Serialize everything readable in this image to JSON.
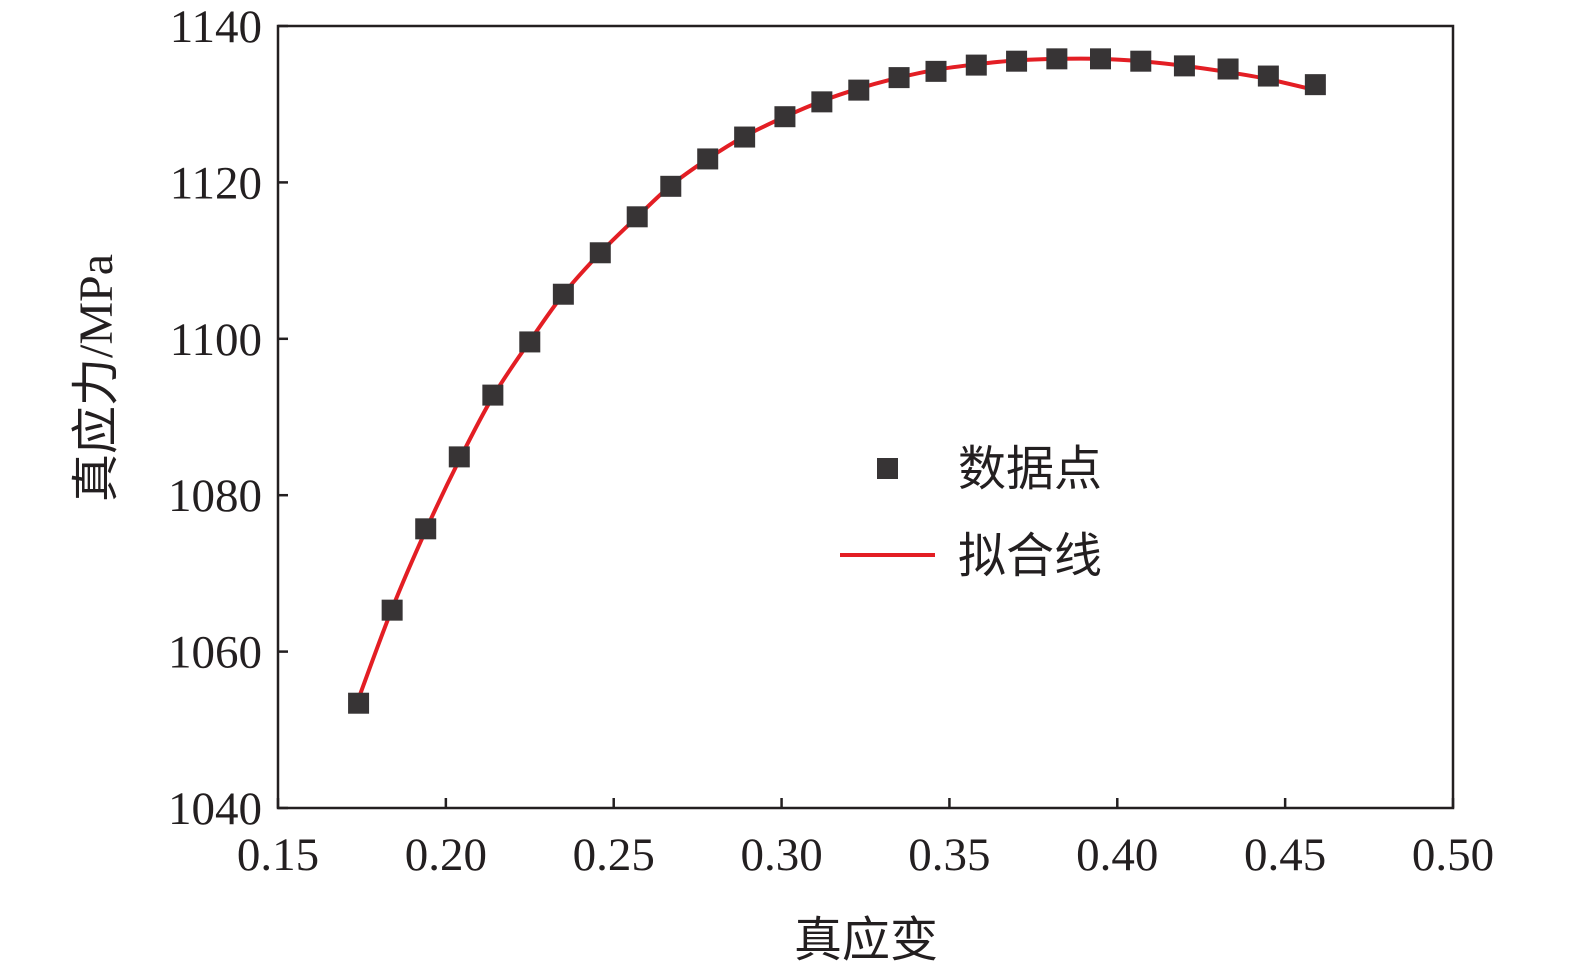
{
  "chart_data": {
    "type": "scatter",
    "title": "",
    "xlabel": "真应变",
    "ylabel": "真应力/MPa",
    "xlim": [
      0.15,
      0.5
    ],
    "ylim": [
      1040,
      1140
    ],
    "xticks": [
      "0.15",
      "0.20",
      "0.25",
      "0.30",
      "0.35",
      "0.40",
      "0.45",
      "0.50"
    ],
    "yticks": [
      "1040",
      "1060",
      "1080",
      "1100",
      "1120",
      "1140"
    ],
    "xtick_values": [
      0.15,
      0.2,
      0.25,
      0.3,
      0.35,
      0.4,
      0.45,
      0.5
    ],
    "ytick_values": [
      1040,
      1060,
      1080,
      1100,
      1120,
      1140
    ],
    "grid": false,
    "legend": {
      "placement": "center-right",
      "entries": [
        "数据点",
        "拟合线"
      ]
    },
    "series": [
      {
        "name": "数据点",
        "kind": "scatter",
        "color": "#373435",
        "x": [
          0.174,
          0.184,
          0.194,
          0.204,
          0.214,
          0.225,
          0.235,
          0.246,
          0.257,
          0.267,
          0.278,
          0.289,
          0.301,
          0.312,
          0.323,
          0.335,
          0.346,
          0.358,
          0.37,
          0.382,
          0.395,
          0.407,
          0.42,
          0.433,
          0.445,
          0.459
        ],
        "y": [
          1053.4,
          1065.3,
          1075.7,
          1084.9,
          1092.8,
          1099.6,
          1105.7,
          1111.0,
          1115.6,
          1119.5,
          1123.0,
          1125.8,
          1128.4,
          1130.3,
          1131.8,
          1133.4,
          1134.2,
          1135.0,
          1135.5,
          1135.8,
          1135.8,
          1135.5,
          1134.9,
          1134.5,
          1133.6,
          1132.5
        ]
      },
      {
        "name": "拟合线",
        "kind": "line",
        "color": "#e31e24",
        "x": [
          0.174,
          0.184,
          0.194,
          0.204,
          0.214,
          0.225,
          0.235,
          0.246,
          0.257,
          0.267,
          0.278,
          0.289,
          0.301,
          0.312,
          0.323,
          0.335,
          0.346,
          0.358,
          0.37,
          0.382,
          0.395,
          0.407,
          0.42,
          0.433,
          0.445,
          0.459
        ],
        "y": [
          1054.0,
          1065.5,
          1075.5,
          1084.5,
          1092.6,
          1099.7,
          1105.7,
          1111.0,
          1115.6,
          1119.6,
          1123.0,
          1125.9,
          1128.4,
          1130.4,
          1132.0,
          1133.4,
          1134.4,
          1135.1,
          1135.6,
          1135.8,
          1135.8,
          1135.5,
          1134.9,
          1134.1,
          1133.2,
          1131.8
        ]
      }
    ]
  }
}
